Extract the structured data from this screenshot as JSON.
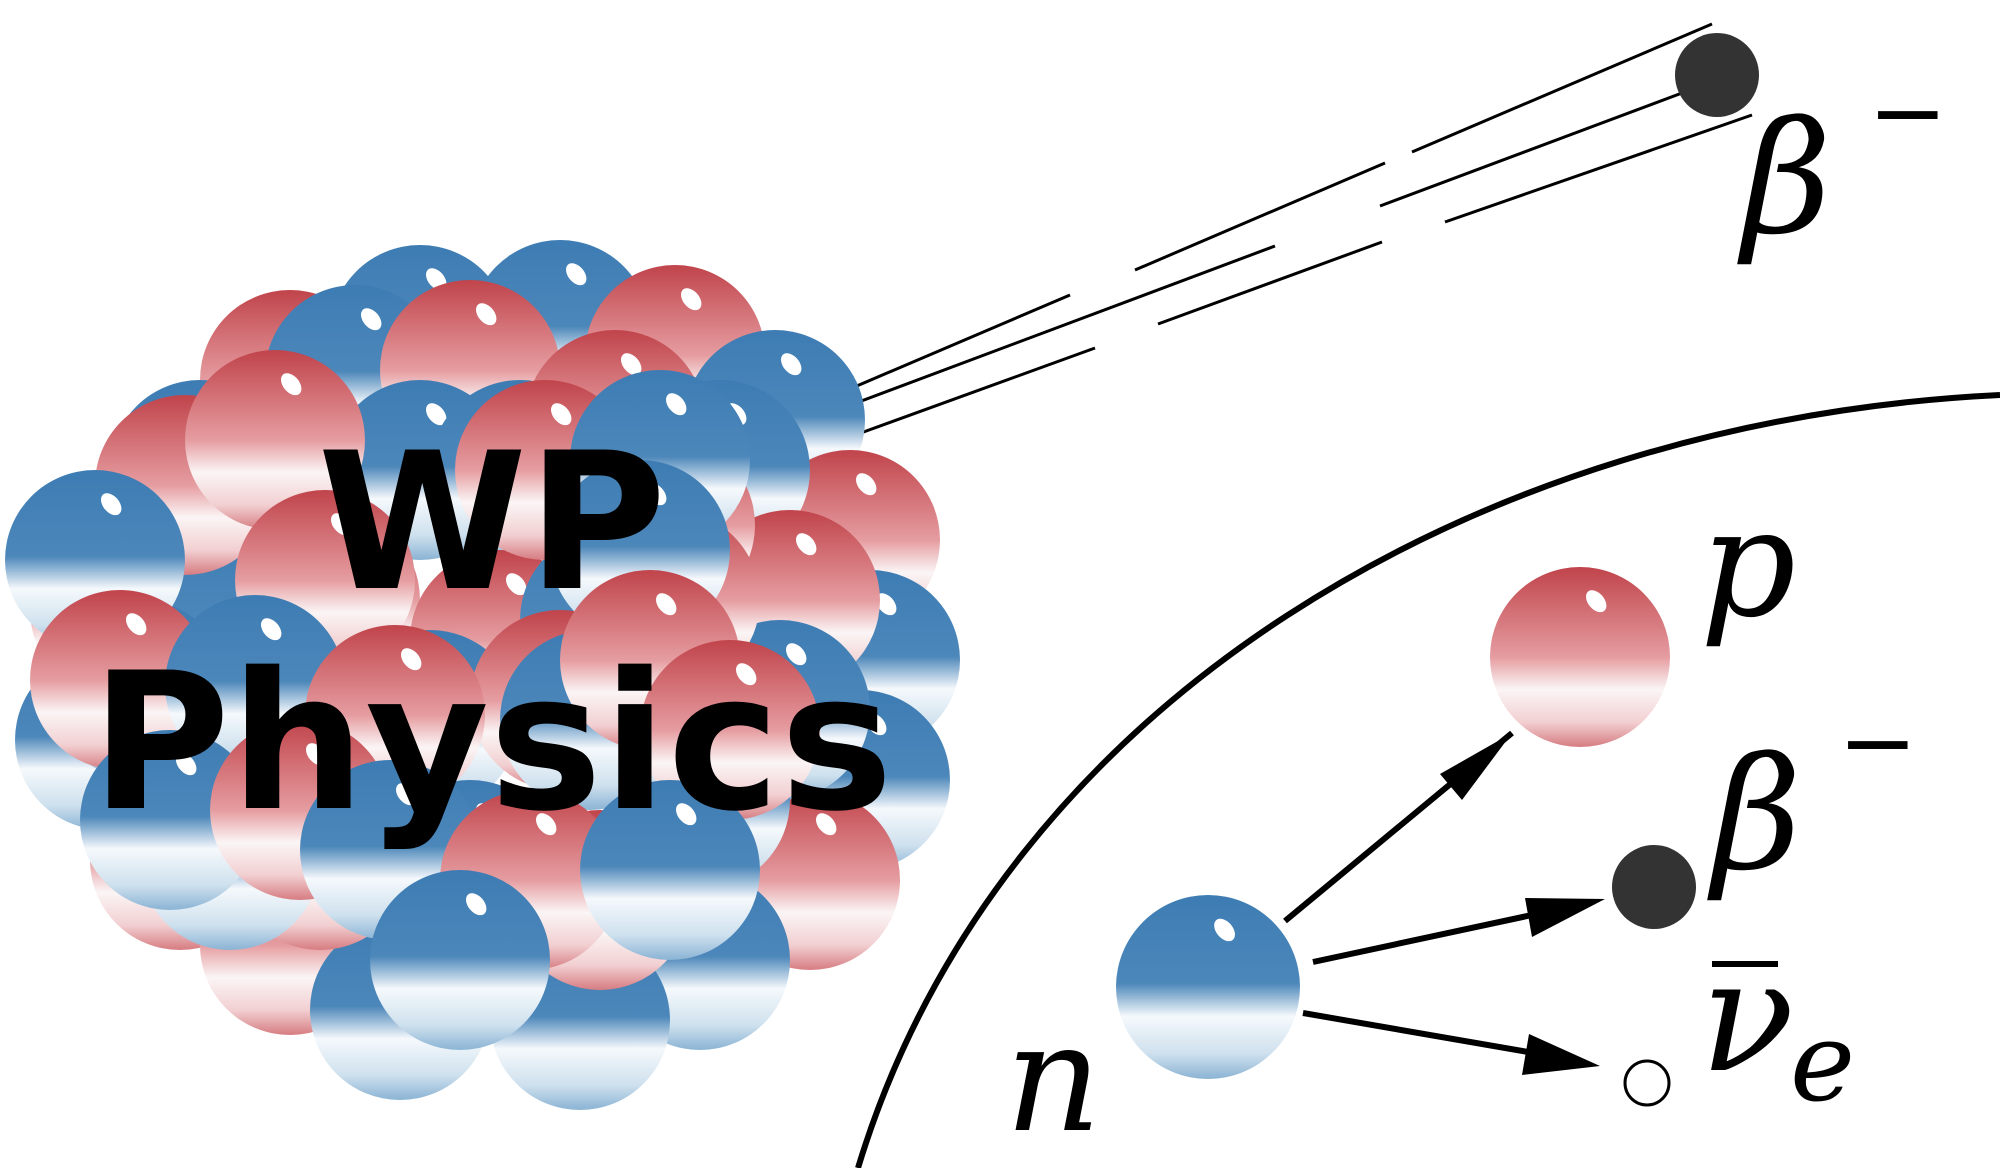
{
  "logo": {
    "line1": "WP",
    "line2": "Physics"
  },
  "labels": {
    "emitted_particle": "β",
    "emitted_charge": "−",
    "neutron": "n",
    "proton": "p",
    "beta": "β",
    "beta_charge": "−",
    "antineutrino": "ν",
    "antineutrino_sub": "e"
  },
  "colors": {
    "proton": "#c9484f",
    "neutron": "#3f7fb5",
    "electron": "#333333",
    "ink": "#000000",
    "background": "#ffffff"
  }
}
